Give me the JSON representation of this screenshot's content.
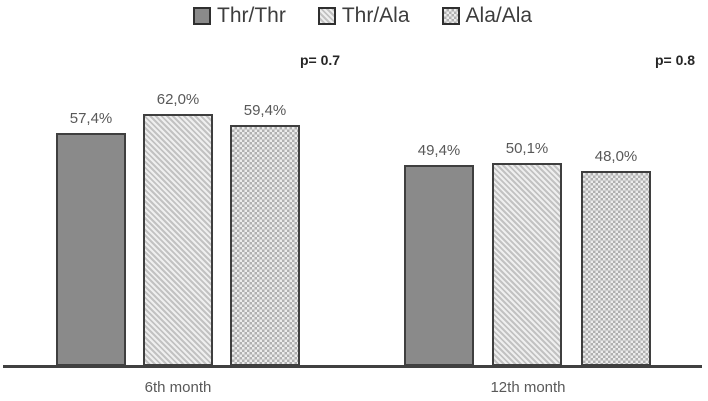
{
  "chart_data": {
    "type": "bar",
    "title": "",
    "xlabel": "",
    "ylabel": "",
    "categories": [
      "6th month",
      "12th month"
    ],
    "series": [
      {
        "name": "Thr/Thr",
        "pattern": "solid",
        "values": [
          57.4,
          49.4
        ],
        "labels": [
          "57,4%",
          "49,4%"
        ]
      },
      {
        "name": "Thr/Ala",
        "pattern": "diagonal-hatch",
        "values": [
          62.0,
          50.1
        ],
        "labels": [
          "62,0%",
          "50,1%"
        ]
      },
      {
        "name": "Ala/Ala",
        "pattern": "checker",
        "values": [
          59.4,
          48.0
        ],
        "labels": [
          "59,4%",
          "48,0%"
        ]
      }
    ],
    "annotations": [
      {
        "text": "p= 0.7",
        "category": "6th month"
      },
      {
        "text": "p= 0.8",
        "category": "12th month"
      }
    ],
    "value_format": "comma-decimal-percent",
    "ylim": [
      0,
      70
    ],
    "grid": false,
    "y_axis_visible": false,
    "legend_position": "top"
  },
  "colors": {
    "bar_solid_fill": "#8a8a8a",
    "bar_border": "#3f3f3f",
    "hatch_stripe": "#c2c2c2",
    "hatch_background": "#efefef",
    "checker_dark": "#b0b0b0",
    "checker_light": "#ececec",
    "axis_line": "#404040",
    "label_text": "#595959",
    "p_value_text": "#262626",
    "legend_text": "#3d3d3d",
    "background": "#ffffff"
  }
}
